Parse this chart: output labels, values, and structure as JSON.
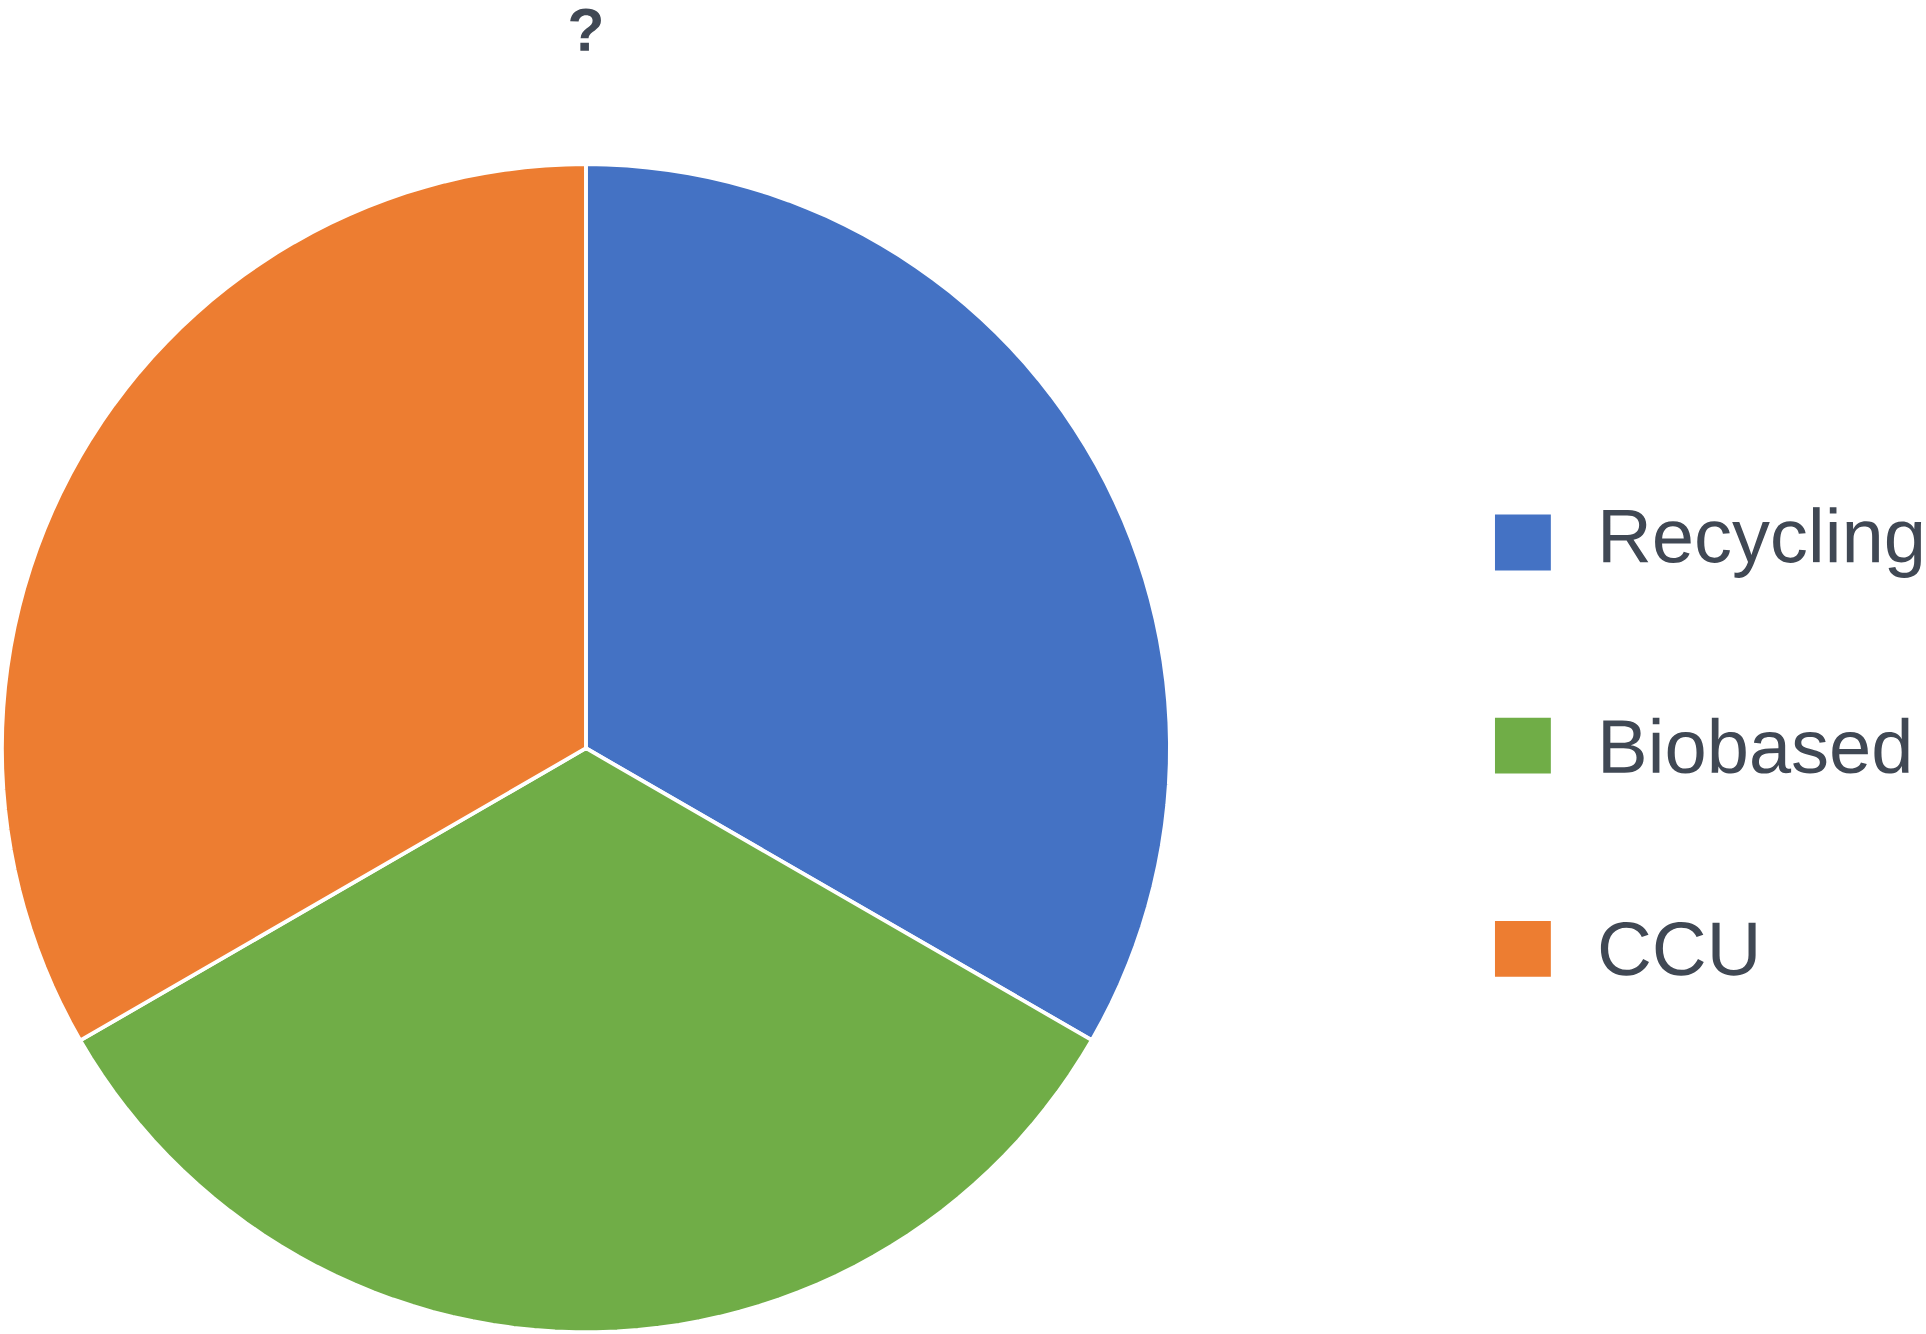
{
  "chart_data": {
    "type": "pie",
    "title": "?",
    "categories": [
      "Recycling",
      "Biobased",
      "CCU"
    ],
    "values": [
      33.33,
      33.33,
      33.34
    ],
    "colors": [
      "#4472c4",
      "#70ad47",
      "#ed7d31"
    ],
    "legend": "right"
  }
}
